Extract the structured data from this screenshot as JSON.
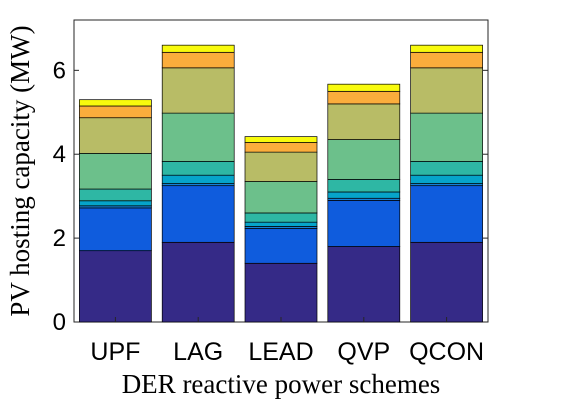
{
  "chart_data": {
    "type": "bar",
    "stacked": true,
    "title": "",
    "xlabel": "DER reactive power schemes",
    "ylabel": "PV hosting capacity (MW)",
    "categories": [
      "UPF",
      "LAG",
      "LEAD",
      "QVP",
      "QCON"
    ],
    "ylim": [
      0,
      7.2
    ],
    "yticks": [
      "0",
      "2",
      "4",
      "6"
    ],
    "grid": false,
    "legend": "none",
    "segment_colors": [
      "#352a87",
      "#0f5cdd",
      "#1481d6",
      "#06a4ca",
      "#2eb7a4",
      "#6cc08b",
      "#b8bc66",
      "#fbad3c",
      "#f8fa0d"
    ],
    "segments": [
      [
        1.7,
        1.02,
        0.05,
        0.12,
        0.28,
        0.85,
        0.85,
        0.28,
        0.15
      ],
      [
        1.9,
        1.35,
        0.05,
        0.2,
        0.33,
        1.15,
        1.08,
        0.37,
        0.17
      ],
      [
        1.4,
        0.83,
        0.05,
        0.1,
        0.22,
        0.75,
        0.7,
        0.23,
        0.14
      ],
      [
        1.8,
        1.1,
        0.05,
        0.15,
        0.3,
        0.95,
        0.85,
        0.3,
        0.17
      ],
      [
        1.9,
        1.35,
        0.05,
        0.2,
        0.33,
        1.15,
        1.08,
        0.37,
        0.17
      ]
    ]
  }
}
